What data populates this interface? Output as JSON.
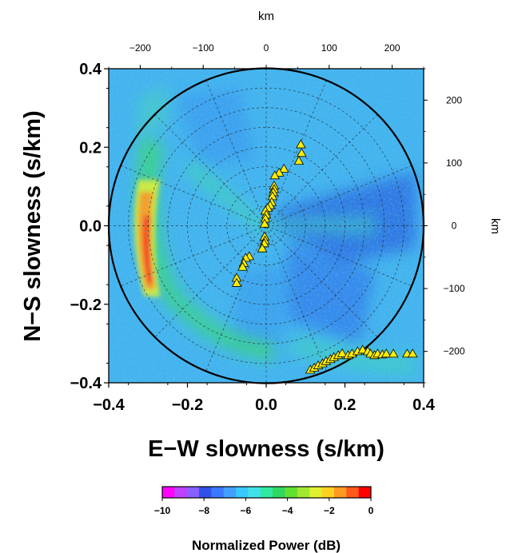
{
  "chart_data": {
    "type": "heatmap",
    "title": "",
    "xlabel": "E−W slowness (s/km)",
    "ylabel": "N−S slowness (s/km)",
    "xlim": [
      -0.4,
      0.4
    ],
    "ylim": [
      -0.4,
      0.4
    ],
    "x_ticks": [
      "−0.4",
      "−0.2",
      "0.0",
      "0.2",
      "0.4"
    ],
    "y_ticks": [
      "−0.4",
      "−0.2",
      "0.0",
      "0.2",
      "0.4"
    ],
    "x_tick_values": [
      -0.4,
      -0.2,
      0.0,
      0.2,
      0.4
    ],
    "y_tick_values": [
      -0.4,
      -0.2,
      0.0,
      0.2,
      0.4
    ],
    "top_axis": {
      "label": "km",
      "ticks": [
        "−200",
        "−100",
        "0",
        "100",
        "200"
      ],
      "tick_values": [
        -200,
        -100,
        0,
        100,
        200
      ],
      "range": [
        -250,
        250
      ]
    },
    "right_axis": {
      "label": "km",
      "ticks": [
        "−200",
        "−100",
        "0",
        "100",
        "200"
      ],
      "tick_values": [
        -200,
        -100,
        0,
        100,
        200
      ],
      "range": [
        -250,
        250
      ]
    },
    "circle_radius": 0.4,
    "grid": "polar-dashed",
    "colorbar": {
      "label": "Normalized Power (dB)",
      "ticks": [
        "−10",
        "−8",
        "−6",
        "−4",
        "−2",
        "0"
      ],
      "tick_values": [
        -10,
        -8,
        -6,
        -4,
        -2,
        0
      ],
      "range": [
        -10,
        0
      ],
      "colors": [
        "#ff00ff",
        "#c040ff",
        "#8860ff",
        "#3050e8",
        "#3a78ff",
        "#40a0ff",
        "#38c8ff",
        "#40e0e8",
        "#30e8a0",
        "#30d860",
        "#60e030",
        "#a0e830",
        "#e0f030",
        "#ffd020",
        "#ff9a20",
        "#ff5a1a",
        "#ff0000"
      ]
    },
    "marker_color": "#ffee00",
    "stations": [
      [
        0.088,
        0.207
      ],
      [
        0.09,
        0.185
      ],
      [
        0.083,
        0.165
      ],
      [
        0.045,
        0.145
      ],
      [
        0.033,
        0.135
      ],
      [
        0.022,
        0.128
      ],
      [
        0.02,
        0.102
      ],
      [
        0.02,
        0.093
      ],
      [
        0.018,
        0.085
      ],
      [
        0.016,
        0.075
      ],
      [
        0.014,
        0.06
      ],
      [
        0.01,
        0.052
      ],
      [
        0.004,
        0.045
      ],
      [
        -0.002,
        0.038
      ],
      [
        0.0,
        0.028
      ],
      [
        -0.002,
        0.018
      ],
      [
        -0.004,
        0.005
      ],
      [
        -0.004,
        -0.028
      ],
      [
        -0.003,
        -0.038
      ],
      [
        -0.005,
        -0.045
      ],
      [
        -0.01,
        -0.058
      ],
      [
        -0.043,
        -0.078
      ],
      [
        -0.052,
        -0.082
      ],
      [
        -0.057,
        -0.095
      ],
      [
        -0.06,
        -0.105
      ],
      [
        -0.075,
        -0.133
      ],
      [
        -0.075,
        -0.146
      ],
      [
        0.112,
        -0.367
      ],
      [
        0.122,
        -0.362
      ],
      [
        0.132,
        -0.356
      ],
      [
        0.143,
        -0.351
      ],
      [
        0.152,
        -0.345
      ],
      [
        0.163,
        -0.34
      ],
      [
        0.172,
        -0.335
      ],
      [
        0.183,
        -0.33
      ],
      [
        0.193,
        -0.325
      ],
      [
        0.208,
        -0.33
      ],
      [
        0.218,
        -0.326
      ],
      [
        0.232,
        -0.32
      ],
      [
        0.245,
        -0.316
      ],
      [
        0.258,
        -0.32
      ],
      [
        0.265,
        -0.326
      ],
      [
        0.275,
        -0.33
      ],
      [
        0.283,
        -0.326
      ],
      [
        0.295,
        -0.328
      ],
      [
        0.305,
        -0.326
      ],
      [
        0.323,
        -0.326
      ],
      [
        0.358,
        -0.326
      ],
      [
        0.372,
        -0.326
      ]
    ]
  }
}
